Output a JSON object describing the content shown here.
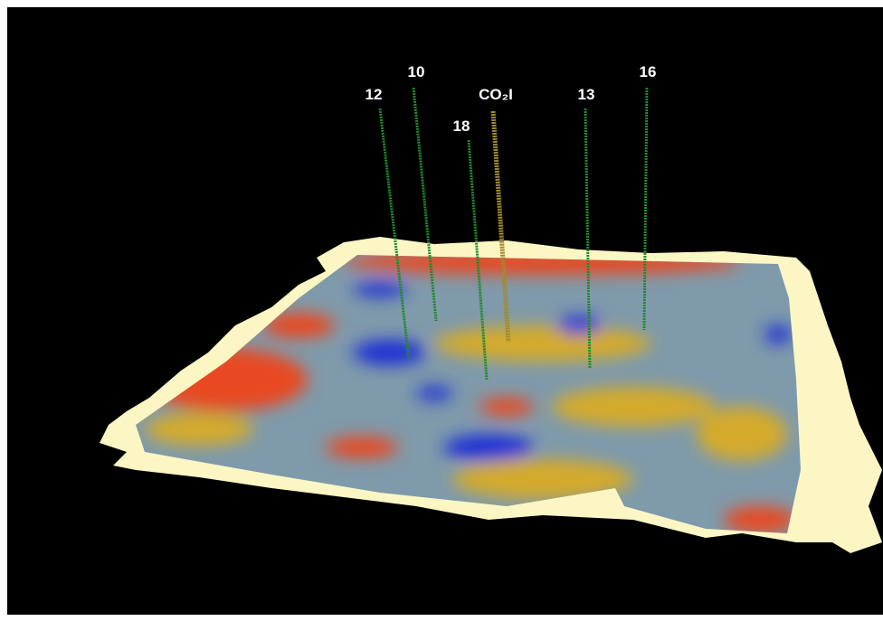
{
  "wells": [
    {
      "label": "12"
    },
    {
      "label": "10"
    },
    {
      "label": "18"
    },
    {
      "label": "CO₂I"
    },
    {
      "label": "13"
    },
    {
      "label": "16"
    }
  ]
}
